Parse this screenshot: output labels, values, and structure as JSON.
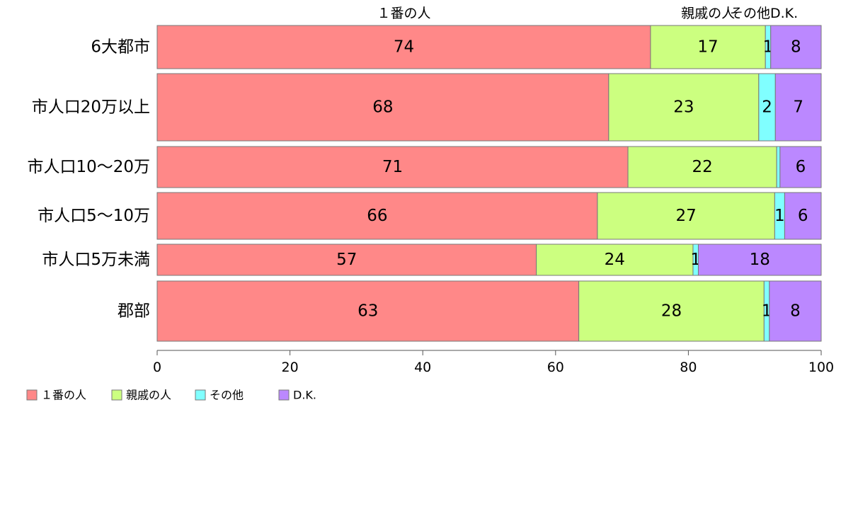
{
  "chart_data": {
    "type": "bar",
    "orientation": "horizontal",
    "stacked": true,
    "categories": [
      "6大都市",
      "市人口20万以上",
      "市人口10～20万",
      "市人口5～10万",
      "市人口5万未満",
      "郡部"
    ],
    "series": [
      {
        "name": "１番の人",
        "color": "#ff8888",
        "values": [
          74.3,
          68.0,
          70.9,
          66.3,
          57.1,
          63.5
        ],
        "labels": [
          "74",
          "68",
          "71",
          "66",
          "57",
          "63"
        ]
      },
      {
        "name": "親戚の人",
        "color": "#ccff80",
        "values": [
          17.3,
          22.6,
          22.4,
          26.7,
          23.6,
          27.9
        ],
        "labels": [
          "17",
          "23",
          "22",
          "27",
          "24",
          "28"
        ]
      },
      {
        "name": "その他",
        "color": "#80ffff",
        "values": [
          0.8,
          2.5,
          0.5,
          1.5,
          0.8,
          0.8
        ],
        "labels": [
          "1",
          "2",
          "",
          "1",
          "1",
          "1"
        ]
      },
      {
        "name": "D.K.",
        "color": "#bb88ff",
        "values": [
          7.6,
          6.9,
          6.2,
          5.5,
          18.5,
          7.8
        ],
        "labels": [
          "8",
          "7",
          "6",
          "6",
          "18",
          "8"
        ]
      }
    ],
    "header_labels": [
      "１番の人",
      "親戚の人",
      "その他",
      "D.K."
    ],
    "xlim": [
      0,
      100
    ],
    "x_ticks": [
      "0",
      "20",
      "40",
      "60",
      "80",
      "100"
    ],
    "grid": false,
    "legend_position": "bottom-left"
  }
}
